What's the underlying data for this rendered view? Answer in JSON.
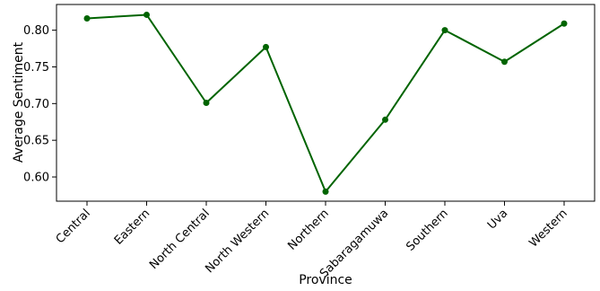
{
  "chart_data": {
    "type": "line",
    "title": "",
    "xlabel": "Province",
    "ylabel": "Average Sentiment",
    "categories": [
      "Central",
      "Eastern",
      "North Central",
      "North Western",
      "Northern",
      "Sabaragamuwa",
      "Southern",
      "Uva",
      "Western"
    ],
    "series": [
      {
        "values": [
          0.816,
          0.821,
          0.701,
          0.777,
          0.58,
          0.678,
          0.8,
          0.757,
          0.809
        ],
        "color": "#006400",
        "marker": "circle"
      }
    ],
    "ylim": [
      0.567,
      0.835
    ],
    "yticks": [
      0.6,
      0.65,
      0.7,
      0.75,
      0.8
    ],
    "ytick_labels": [
      "0.60",
      "0.65",
      "0.70",
      "0.75",
      "0.80"
    ],
    "grid": false,
    "legend": "none",
    "x_tick_rotation": 45
  }
}
